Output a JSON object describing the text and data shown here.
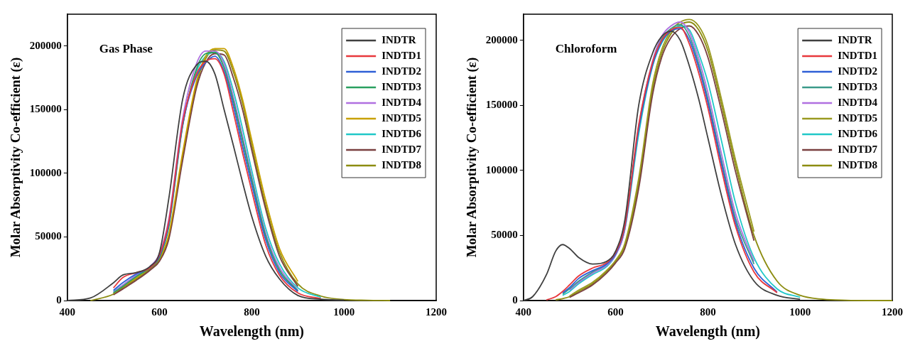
{
  "chart_data": [
    {
      "type": "line",
      "annotations": [
        "Gas Phase"
      ],
      "xlabel": "Wavelength (nm)",
      "ylabel": "Molar Absorptivity Co-efficient (ε)",
      "xlim": [
        400,
        1200
      ],
      "ylim": [
        0,
        225000
      ],
      "xticks": [
        400,
        600,
        800,
        1000,
        1200
      ],
      "yticks": [
        0,
        50000,
        100000,
        150000,
        200000
      ],
      "grid": false,
      "legend": "top right",
      "marker": "none",
      "line_style": "solid",
      "x": [
        400,
        450,
        500,
        520,
        550,
        580,
        600,
        620,
        650,
        680,
        700,
        720,
        740,
        760,
        780,
        800,
        830,
        860,
        900,
        950,
        1000,
        1050,
        1100
      ],
      "series": [
        {
          "name": "INDTR",
          "color": "#404040",
          "values": [
            0,
            2000,
            14000,
            20000,
            22000,
            27000,
            38000,
            80000,
            158000,
            185000,
            188000,
            178000,
            150000,
            122000,
            93000,
            66000,
            35000,
            17000,
            4000,
            1000,
            300,
            null,
            null
          ]
        },
        {
          "name": "INDTD1",
          "color": "#e8383d",
          "values": [
            null,
            null,
            10000,
            18000,
            22000,
            26000,
            36000,
            62000,
            140000,
            178000,
            188000,
            190000,
            178000,
            148000,
            116000,
            86000,
            44000,
            20000,
            6000,
            1500,
            null,
            null,
            null
          ]
        },
        {
          "name": "INDTD2",
          "color": "#2f5fd6",
          "values": [
            null,
            null,
            8000,
            14000,
            21000,
            26000,
            35000,
            60000,
            138000,
            176000,
            187000,
            192000,
            180000,
            153000,
            121000,
            91000,
            48000,
            22000,
            7000,
            null,
            null,
            null,
            null
          ]
        },
        {
          "name": "INDTD3",
          "color": "#2aa060",
          "values": [
            null,
            null,
            6000,
            11000,
            19000,
            26000,
            34000,
            58000,
            137000,
            182000,
            194000,
            195000,
            183000,
            157000,
            126000,
            95000,
            51000,
            24000,
            7500,
            null,
            null,
            null,
            null
          ]
        },
        {
          "name": "INDTD4",
          "color": "#b070e0",
          "values": [
            null,
            null,
            6500,
            12000,
            20000,
            27000,
            37000,
            64000,
            143000,
            186000,
            196000,
            196000,
            186000,
            160000,
            129000,
            97000,
            53000,
            26000,
            8000,
            null,
            null,
            null,
            null
          ]
        },
        {
          "name": "INDTD5",
          "color": "#c8a000",
          "values": [
            null,
            null,
            5500,
            11000,
            18000,
            26000,
            33000,
            52000,
            116000,
            172000,
            192000,
            198000,
            198000,
            183000,
            158000,
            126000,
            79000,
            41000,
            15000,
            null,
            null,
            null,
            null
          ]
        },
        {
          "name": "INDTD6",
          "color": "#20c8c8",
          "values": [
            null,
            null,
            7000,
            12000,
            20000,
            26000,
            35000,
            60000,
            138000,
            180000,
            192000,
            195000,
            188000,
            165000,
            135000,
            102000,
            57000,
            29000,
            10000,
            2500,
            null,
            null,
            null
          ]
        },
        {
          "name": "INDTD7",
          "color": "#7a4040",
          "values": [
            null,
            null,
            4500,
            9000,
            16000,
            24000,
            31000,
            48000,
            110000,
            167000,
            187000,
            194000,
            193000,
            175000,
            150000,
            118000,
            72000,
            35000,
            11000,
            null,
            null,
            null,
            null
          ]
        },
        {
          "name": "INDTD8",
          "color": "#8c8c10",
          "values": [
            null,
            0,
            5000,
            10000,
            17000,
            25000,
            32000,
            50000,
            113000,
            170000,
            190000,
            197000,
            196000,
            180000,
            155000,
            122000,
            75000,
            38000,
            13000,
            3500,
            800,
            200,
            0
          ]
        }
      ]
    },
    {
      "type": "line",
      "annotations": [
        "Chloroform"
      ],
      "xlabel": "Wavelength (nm)",
      "ylabel": "Molar Absorptivity Co-efficient (ε)",
      "xlim": [
        400,
        1200
      ],
      "ylim": [
        0,
        220000
      ],
      "xticks": [
        400,
        600,
        800,
        1000,
        1200
      ],
      "yticks": [
        0,
        50000,
        100000,
        150000,
        200000
      ],
      "grid": false,
      "legend": "top right",
      "marker": "none",
      "line_style": "solid",
      "x": [
        400,
        420,
        450,
        470,
        485,
        500,
        520,
        550,
        580,
        600,
        620,
        650,
        680,
        700,
        720,
        740,
        760,
        780,
        800,
        830,
        860,
        900,
        950,
        1000,
        1050,
        1100,
        1150,
        1200
      ],
      "series": [
        {
          "name": "INDTR",
          "color": "#404040",
          "values": [
            0,
            3000,
            20000,
            38000,
            43000,
            40000,
            33000,
            28000,
            30000,
            38000,
            62000,
            150000,
            190000,
            203000,
            207000,
            200000,
            180000,
            155000,
            125000,
            80000,
            43000,
            15000,
            4000,
            1000,
            null,
            null,
            null,
            null
          ]
        },
        {
          "name": "INDTD1",
          "color": "#e8383d",
          "values": [
            null,
            null,
            500,
            3000,
            7000,
            12000,
            19000,
            25000,
            29000,
            37000,
            58000,
            135000,
            183000,
            200000,
            208000,
            210000,
            197000,
            175000,
            148000,
            100000,
            57000,
            22000,
            6000,
            null,
            null,
            null,
            null,
            null
          ]
        },
        {
          "name": "INDTD2",
          "color": "#2f5fd6",
          "values": [
            null,
            null,
            null,
            null,
            6000,
            10000,
            17000,
            23000,
            28000,
            36000,
            57000,
            132000,
            181000,
            199000,
            207000,
            209000,
            200000,
            179000,
            152000,
            104000,
            60000,
            25000,
            6500,
            null,
            null,
            null,
            null,
            null
          ]
        },
        {
          "name": "INDTD3",
          "color": "#3b9a8a",
          "values": [
            null,
            null,
            null,
            null,
            5000,
            9000,
            15000,
            22000,
            28000,
            36000,
            57000,
            132000,
            182000,
            201000,
            209000,
            212000,
            203000,
            182000,
            155000,
            107000,
            63000,
            28000,
            null,
            null,
            null,
            null,
            null,
            null
          ]
        },
        {
          "name": "INDTD4",
          "color": "#b070e0",
          "values": [
            null,
            null,
            null,
            null,
            null,
            8000,
            14000,
            21000,
            27000,
            35000,
            55000,
            134000,
            184000,
            203000,
            211000,
            214000,
            206000,
            186000,
            160000,
            112000,
            67000,
            30000,
            null,
            null,
            null,
            null,
            null,
            null
          ]
        },
        {
          "name": "INDTD5",
          "color": "#9a9a20",
          "values": [
            null,
            null,
            null,
            null,
            null,
            3500,
            8000,
            14000,
            23000,
            31000,
            44000,
            94000,
            166000,
            193000,
            207000,
            214000,
            216000,
            211000,
            196000,
            154000,
            108000,
            53000,
            null,
            null,
            null,
            null,
            null,
            null
          ]
        },
        {
          "name": "INDTD6",
          "color": "#20c8c8",
          "values": [
            null,
            null,
            null,
            null,
            4000,
            7000,
            13000,
            20000,
            26000,
            35000,
            55000,
            128000,
            180000,
            198000,
            207000,
            211000,
            208000,
            190000,
            168000,
            122000,
            75000,
            33000,
            9000,
            2500,
            null,
            null,
            null,
            null
          ]
        },
        {
          "name": "INDTD7",
          "color": "#7a4040",
          "values": [
            null,
            null,
            null,
            null,
            null,
            2500,
            6000,
            12000,
            21000,
            29000,
            40000,
            86000,
            158000,
            187000,
            202000,
            209000,
            211000,
            204000,
            187000,
            145000,
            99000,
            46000,
            null,
            null,
            null,
            null,
            null,
            null
          ]
        },
        {
          "name": "INDTD8",
          "color": "#8c8c10",
          "values": [
            null,
            null,
            null,
            500,
            1500,
            3000,
            7000,
            13000,
            22000,
            30000,
            42000,
            90000,
            162000,
            190000,
            205000,
            212000,
            214000,
            208000,
            192000,
            150000,
            104000,
            50000,
            15000,
            4000,
            1000,
            200,
            0,
            0
          ]
        }
      ]
    }
  ]
}
